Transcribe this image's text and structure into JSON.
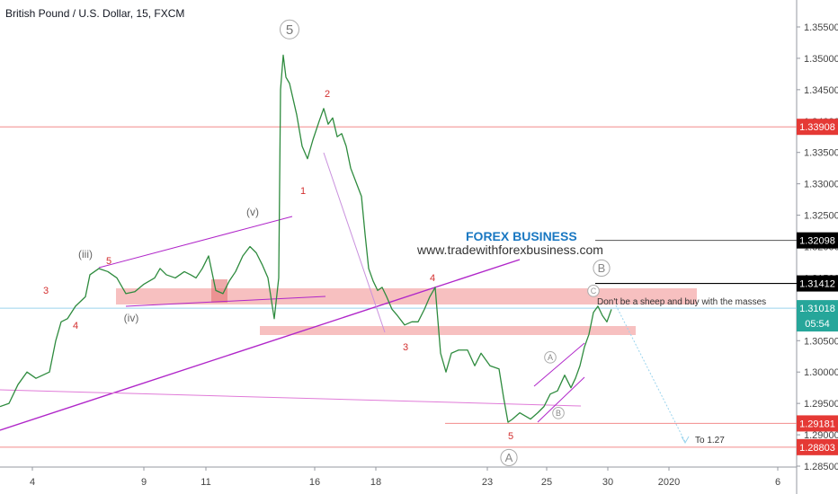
{
  "header": {
    "title": "British Pound / U.S. Dollar, 15, FXCM"
  },
  "promo": {
    "brand": "FOREX BUSINESS",
    "url": "www.tradewithforexbusiness.com"
  },
  "annotations": {
    "note": "Don't be a sheep and buy with the masses",
    "target": "To 1.27"
  },
  "chart_data": {
    "type": "line",
    "title": "British Pound / U.S. Dollar, 15, FXCM",
    "ylim": [
      1.2835,
      1.3585
    ],
    "y_ticks": [
      "1.35500",
      "1.35000",
      "1.34500",
      "1.34000",
      "1.33500",
      "1.33000",
      "1.32500",
      "1.32000",
      "1.31500",
      "1.31000",
      "1.30500",
      "1.30000",
      "1.29500",
      "1.29000",
      "1.28500"
    ],
    "x_ticks": [
      "4",
      "9",
      "11",
      "16",
      "18",
      "23",
      "25",
      "30",
      "2020",
      "6"
    ],
    "price_labels": [
      {
        "label": "1.33908",
        "value": 1.33908,
        "color": "#e53935"
      },
      {
        "label": "1.32098",
        "value": 1.32098,
        "color": "#000000"
      },
      {
        "label": "1.31412",
        "value": 1.31412,
        "color": "#000000"
      },
      {
        "label": "1.31018",
        "value": 1.31018,
        "color": "#26a69a"
      },
      {
        "label": "05:54",
        "value": 1.30775,
        "color": "#26a69a"
      },
      {
        "label": "1.29181",
        "value": 1.29181,
        "color": "#e53935"
      },
      {
        "label": "1.28803",
        "value": 1.28803,
        "color": "#e53935"
      }
    ],
    "series": [
      {
        "points": [
          [
            0,
            1.2945
          ],
          [
            10,
            1.295
          ],
          [
            20,
            1.298
          ],
          [
            30,
            1.3
          ],
          [
            40,
            1.299
          ],
          [
            55,
            1.3
          ],
          [
            62,
            1.305
          ],
          [
            68,
            1.308
          ],
          [
            75,
            1.3085
          ],
          [
            84,
            1.3105
          ],
          [
            95,
            1.312
          ],
          [
            100,
            1.3155
          ],
          [
            110,
            1.3165
          ],
          [
            120,
            1.316
          ],
          [
            130,
            1.315
          ],
          [
            140,
            1.3125
          ],
          [
            150,
            1.3128
          ],
          [
            160,
            1.314
          ],
          [
            172,
            1.315
          ],
          [
            178,
            1.3165
          ],
          [
            185,
            1.3155
          ],
          [
            195,
            1.315
          ],
          [
            205,
            1.316
          ],
          [
            212,
            1.3155
          ],
          [
            218,
            1.315
          ],
          [
            225,
            1.3165
          ],
          [
            232,
            1.3185
          ],
          [
            240,
            1.313
          ],
          [
            248,
            1.3125
          ],
          [
            255,
            1.3145
          ],
          [
            262,
            1.316
          ],
          [
            270,
            1.3185
          ],
          [
            278,
            1.32
          ],
          [
            285,
            1.319
          ],
          [
            292,
            1.317
          ],
          [
            298,
            1.315
          ],
          [
            305,
            1.3085
          ],
          [
            310,
            1.315
          ],
          [
            312,
            1.345
          ],
          [
            315,
            1.3505
          ],
          [
            318,
            1.347
          ],
          [
            322,
            1.346
          ],
          [
            330,
            1.341
          ],
          [
            336,
            1.336
          ],
          [
            342,
            1.334
          ],
          [
            348,
            1.337
          ],
          [
            355,
            1.34
          ],
          [
            360,
            1.342
          ],
          [
            365,
            1.3395
          ],
          [
            370,
            1.3405
          ],
          [
            375,
            1.3375
          ],
          [
            380,
            1.338
          ],
          [
            385,
            1.336
          ],
          [
            390,
            1.3325
          ],
          [
            398,
            1.3295
          ],
          [
            402,
            1.328
          ],
          [
            406,
            1.322
          ],
          [
            410,
            1.3165
          ],
          [
            415,
            1.3145
          ],
          [
            420,
            1.313
          ],
          [
            425,
            1.3135
          ],
          [
            430,
            1.312
          ],
          [
            436,
            1.31
          ],
          [
            442,
            1.309
          ],
          [
            450,
            1.3075
          ],
          [
            458,
            1.308
          ],
          [
            465,
            1.308
          ],
          [
            472,
            1.31
          ],
          [
            478,
            1.312
          ],
          [
            484,
            1.3135
          ],
          [
            490,
            1.303
          ],
          [
            496,
            1.3
          ],
          [
            502,
            1.303
          ],
          [
            510,
            1.3035
          ],
          [
            520,
            1.3035
          ],
          [
            528,
            1.301
          ],
          [
            535,
            1.303
          ],
          [
            545,
            1.301
          ],
          [
            555,
            1.3005
          ],
          [
            560,
            1.296
          ],
          [
            565,
            1.292
          ],
          [
            570,
            1.2925
          ],
          [
            578,
            1.2935
          ],
          [
            590,
            1.2925
          ],
          [
            598,
            1.2935
          ],
          [
            605,
            1.2945
          ],
          [
            612,
            1.2965
          ],
          [
            620,
            1.297
          ],
          [
            628,
            1.2995
          ],
          [
            635,
            1.2975
          ],
          [
            640,
            1.299
          ],
          [
            645,
            1.301
          ],
          [
            650,
            1.304
          ],
          [
            655,
            1.306
          ],
          [
            660,
            1.3095
          ],
          [
            665,
            1.3105
          ],
          [
            670,
            1.309
          ],
          [
            675,
            1.308
          ],
          [
            680,
            1.31
          ]
        ]
      }
    ],
    "levels": [
      1.33908,
      1.32098,
      1.31412,
      1.31018,
      1.29181,
      1.28803
    ],
    "wave_labels": [
      "5",
      "2",
      "1",
      "3",
      "4",
      "5",
      "3",
      "4",
      "(iii)",
      "(iv)",
      "(v)",
      "5",
      "3",
      "4",
      "5",
      "B",
      "C",
      "A",
      "B",
      "A"
    ]
  }
}
